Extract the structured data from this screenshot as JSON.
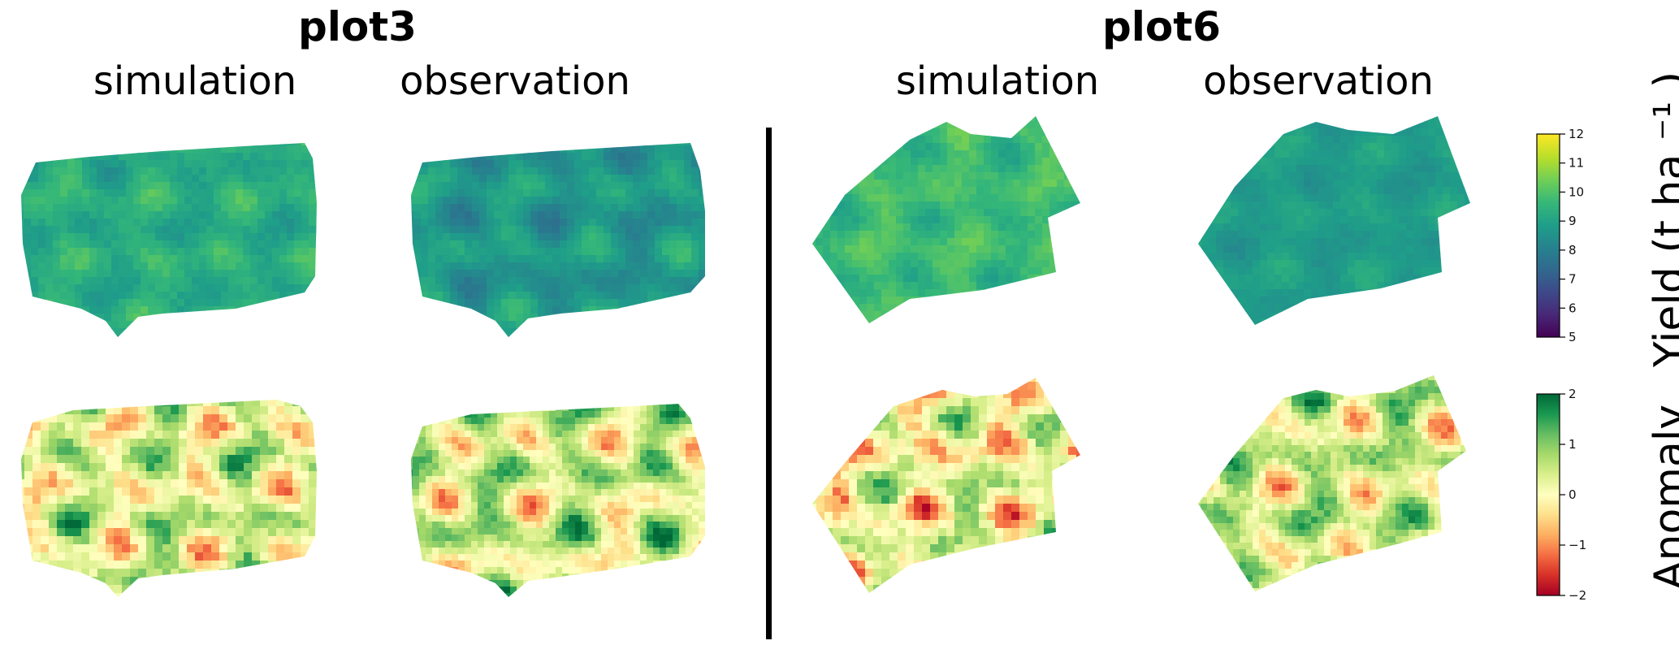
{
  "panels": [
    {
      "title": "plot3",
      "columns": [
        "simulation",
        "observation"
      ]
    },
    {
      "title": "plot6",
      "columns": [
        "simulation",
        "observation"
      ]
    }
  ],
  "colorbars": [
    {
      "label": "Yield (t ha ⁻¹ )",
      "ticks": [
        "5",
        "6",
        "7",
        "8",
        "9",
        "10",
        "11",
        "12"
      ],
      "cmap": "viridis",
      "range": [
        5,
        12
      ]
    },
    {
      "label": "Anomaly",
      "ticks": [
        "−2",
        "−1",
        "0",
        "1",
        "2"
      ],
      "cmap": "RdYlGn",
      "range": [
        -2,
        2
      ]
    }
  ],
  "chart_data": {
    "type": "heatmap",
    "fields": [
      {
        "plot": "plot3",
        "kind": "simulation",
        "variable": "yield",
        "typical_range": [
          7,
          11
        ]
      },
      {
        "plot": "plot3",
        "kind": "observation",
        "variable": "yield",
        "typical_range": [
          6,
          10
        ]
      },
      {
        "plot": "plot6",
        "kind": "simulation",
        "variable": "yield",
        "typical_range": [
          8,
          11
        ]
      },
      {
        "plot": "plot6",
        "kind": "observation",
        "variable": "yield",
        "typical_range": [
          7.5,
          9.5
        ]
      },
      {
        "plot": "plot3",
        "kind": "simulation",
        "variable": "anomaly",
        "typical_range": [
          -2,
          2
        ]
      },
      {
        "plot": "plot3",
        "kind": "observation",
        "variable": "anomaly",
        "typical_range": [
          -2,
          2
        ]
      },
      {
        "plot": "plot6",
        "kind": "simulation",
        "variable": "anomaly",
        "typical_range": [
          -2,
          2
        ]
      },
      {
        "plot": "plot6",
        "kind": "observation",
        "variable": "anomaly",
        "typical_range": [
          -2,
          2
        ]
      }
    ],
    "colors": {
      "viridis": [
        "#440154",
        "#482878",
        "#3e4989",
        "#31688e",
        "#26828e",
        "#1f9e89",
        "#35b779",
        "#6ece58",
        "#b5de2b",
        "#fde725"
      ],
      "rdylgn": [
        "#a50026",
        "#d73027",
        "#f46d43",
        "#fdae61",
        "#fee08b",
        "#ffffbf",
        "#d9ef8b",
        "#a6d96a",
        "#66bd63",
        "#1a9850",
        "#006837"
      ]
    }
  }
}
